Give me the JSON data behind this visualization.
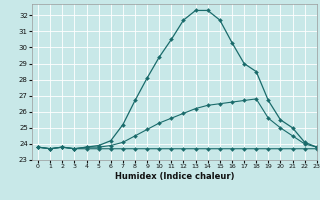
{
  "xlabel": "Humidex (Indice chaleur)",
  "xlim": [
    -0.5,
    23
  ],
  "ylim": [
    23,
    32.7
  ],
  "yticks": [
    23,
    24,
    25,
    26,
    27,
    28,
    29,
    30,
    31,
    32
  ],
  "xticks": [
    0,
    1,
    2,
    3,
    4,
    5,
    6,
    7,
    8,
    9,
    10,
    11,
    12,
    13,
    14,
    15,
    16,
    17,
    18,
    19,
    20,
    21,
    22,
    23
  ],
  "background_color": "#c8e8e8",
  "grid_color": "#ffffff",
  "line_color": "#1a6b6b",
  "line1_y": [
    23.8,
    23.7,
    23.8,
    23.7,
    23.7,
    23.7,
    23.7,
    23.7,
    23.7,
    23.7,
    23.7,
    23.7,
    23.7,
    23.7,
    23.7,
    23.7,
    23.7,
    23.7,
    23.7,
    23.7,
    23.7,
    23.7,
    23.7,
    23.7
  ],
  "line2_y": [
    23.8,
    23.7,
    23.8,
    23.7,
    23.8,
    23.8,
    23.9,
    24.1,
    24.5,
    24.9,
    25.3,
    25.6,
    25.9,
    26.2,
    26.4,
    26.5,
    26.6,
    26.7,
    26.8,
    25.6,
    25.0,
    24.5,
    24.0,
    23.8
  ],
  "line3_y": [
    23.8,
    23.7,
    23.8,
    23.7,
    23.8,
    23.9,
    24.2,
    25.2,
    26.7,
    28.1,
    29.4,
    30.5,
    31.7,
    32.3,
    32.3,
    31.7,
    30.3,
    29.0,
    28.5,
    26.7,
    25.5,
    25.0,
    24.1,
    23.8
  ]
}
